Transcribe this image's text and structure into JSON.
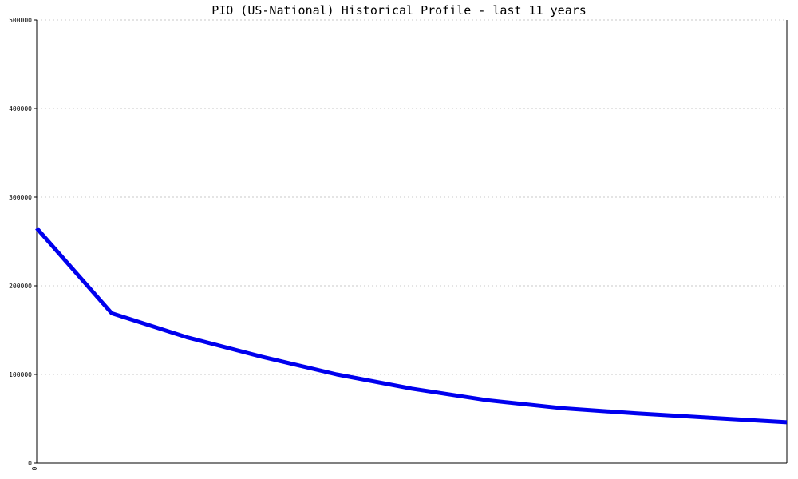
{
  "chart_data": {
    "type": "line",
    "title": "PIO (US-National) Historical Profile - last 11 years",
    "xlabel": "",
    "ylabel": "",
    "ylim": [
      0,
      500000
    ],
    "y_ticks": [
      0,
      100000,
      200000,
      300000,
      400000,
      500000
    ],
    "y_tick_labels": [
      "0",
      "100000",
      "200000",
      "300000",
      "400000",
      "500000"
    ],
    "x_tick_labels": [
      "0"
    ],
    "grid": true,
    "legend": "none",
    "series": [
      {
        "color": "#0000ee",
        "x": [
          0,
          1,
          2,
          3,
          4,
          5,
          6,
          7,
          8,
          9,
          10
        ],
        "values": [
          265000,
          169000,
          142000,
          120000,
          100000,
          84000,
          71000,
          62000,
          56000,
          51000,
          46000
        ]
      }
    ]
  }
}
